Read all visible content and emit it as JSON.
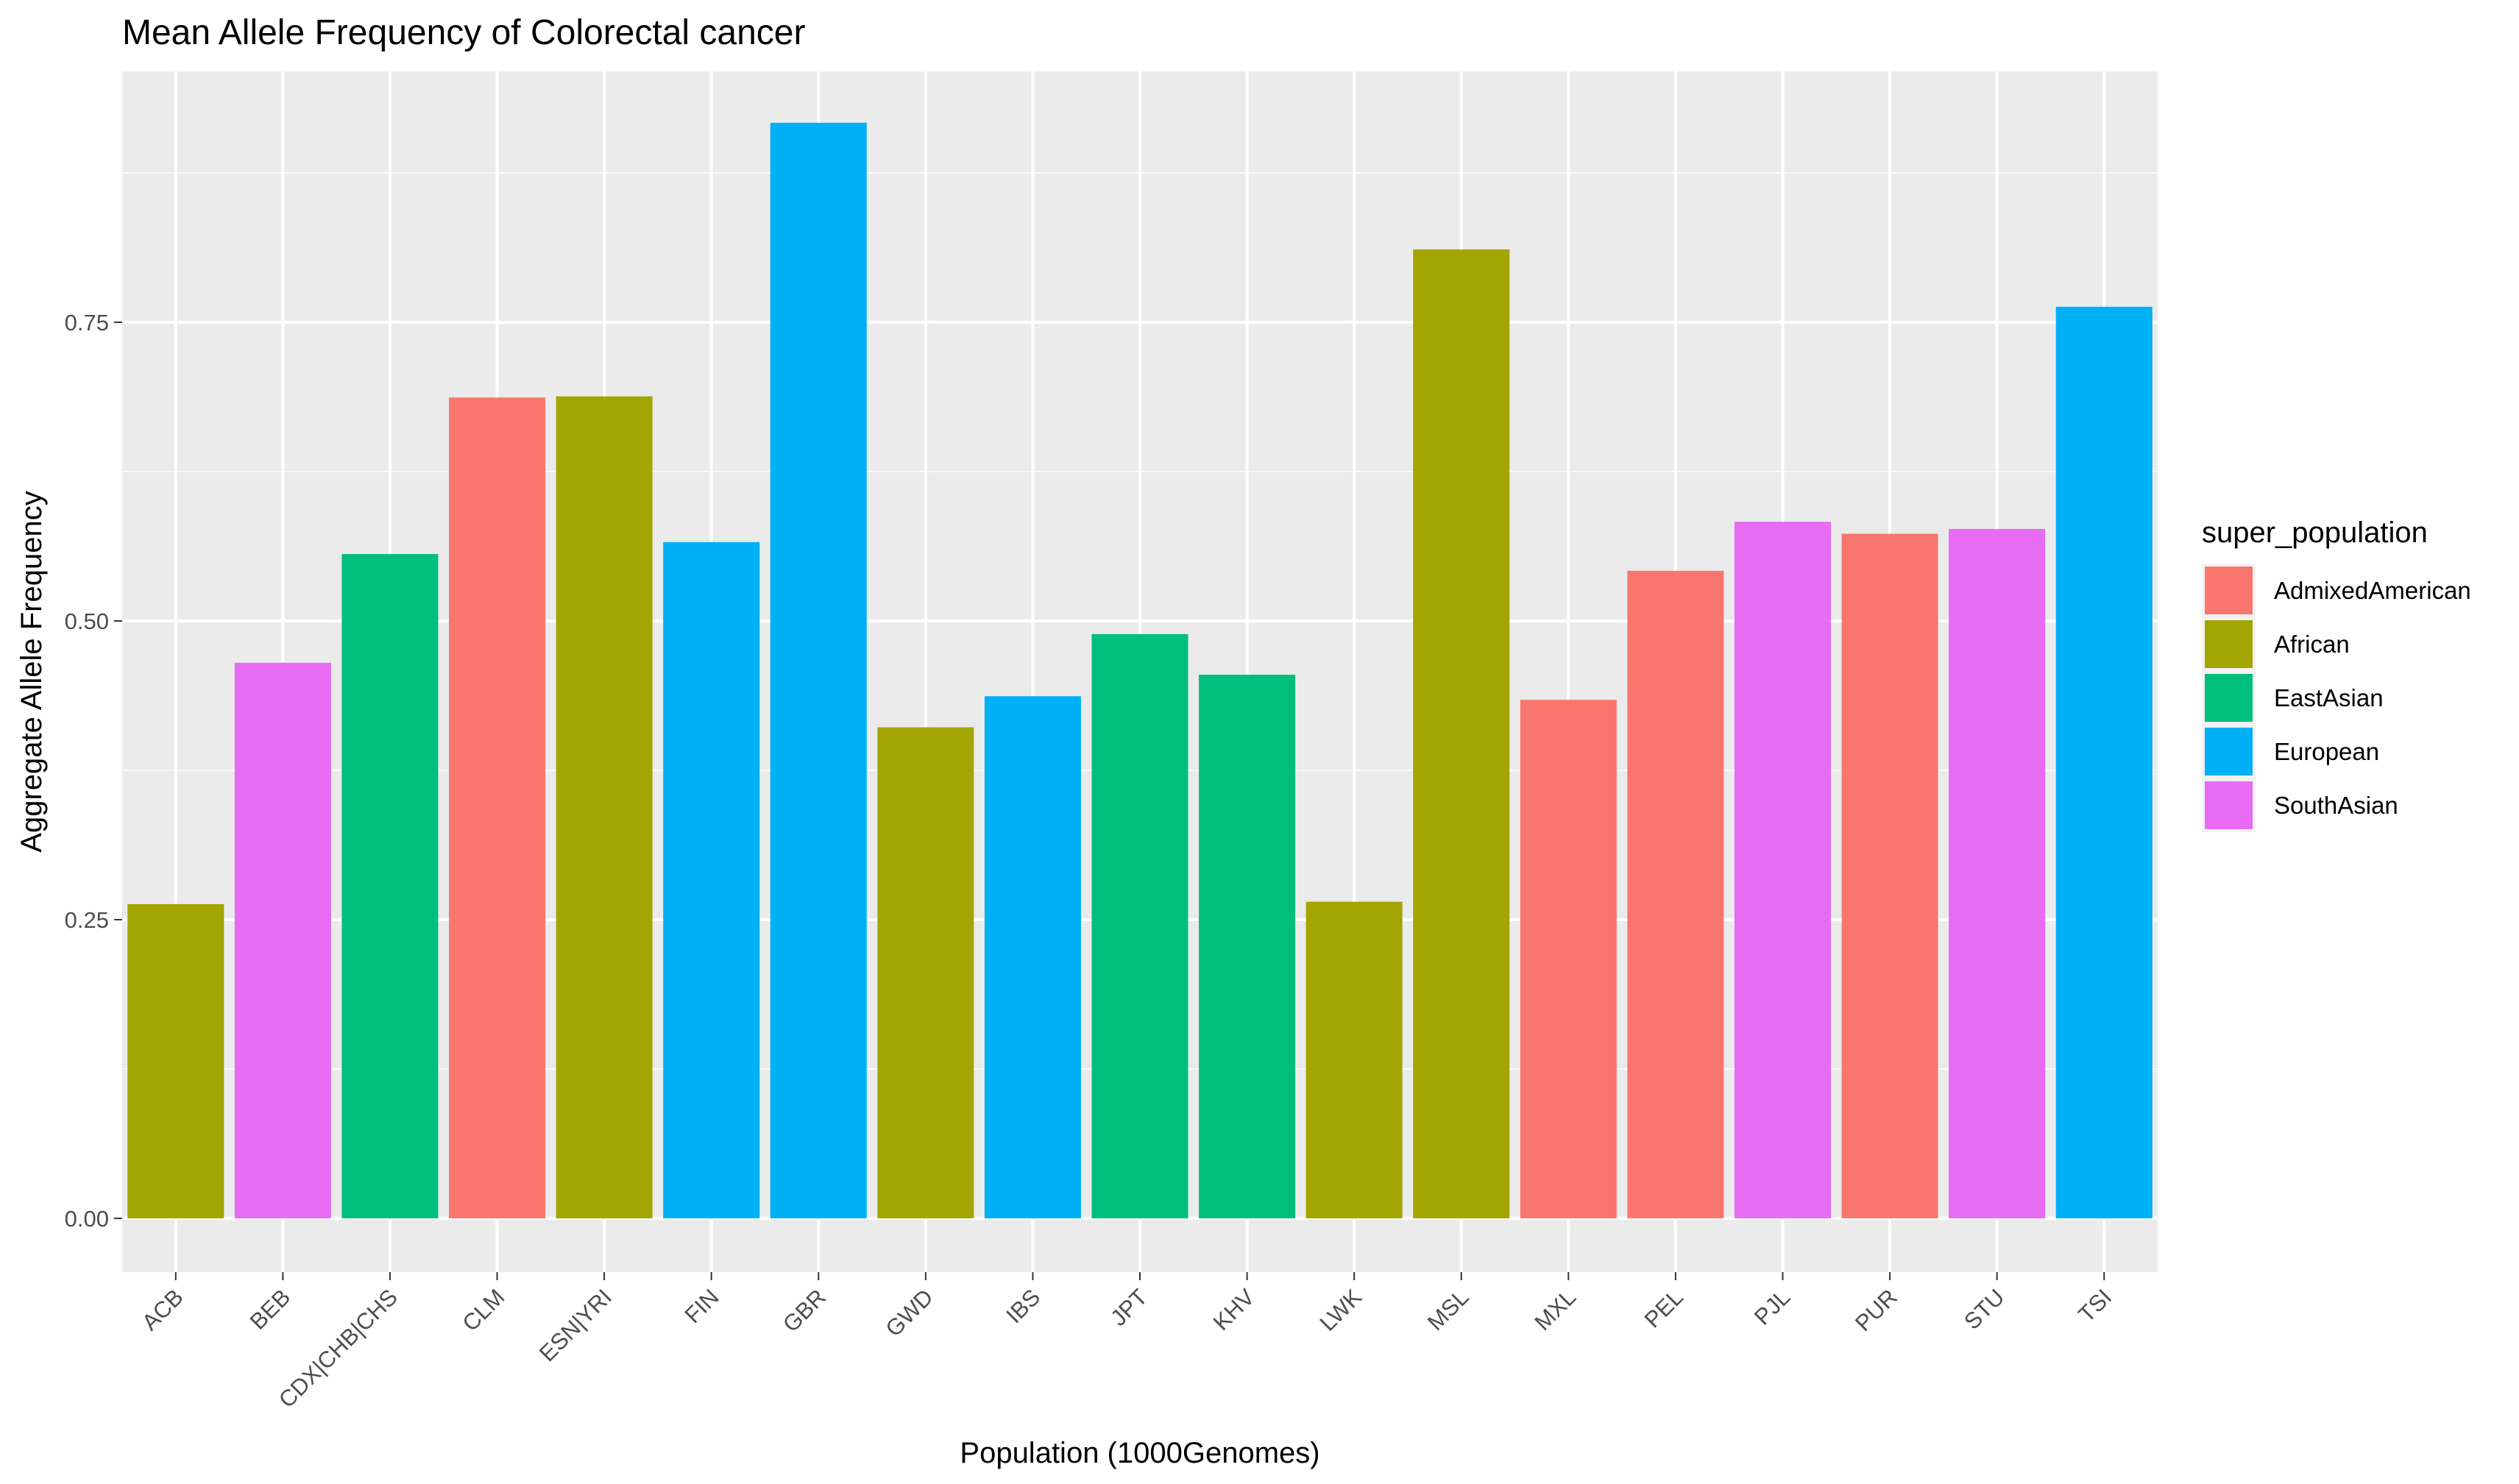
{
  "chart_data": {
    "type": "bar",
    "title": "Mean Allele Frequency of Colorectal cancer",
    "xlabel": "Population (1000Genomes)",
    "ylabel": "Aggregate Allele Frequency",
    "ylim": [
      -0.045,
      0.96
    ],
    "y_ticks": [
      "0.00",
      "0.25",
      "0.50",
      "0.75"
    ],
    "y_tick_values": [
      0,
      0.25,
      0.5,
      0.75
    ],
    "grid": true,
    "legend_position": "right",
    "legend_title": "super_population",
    "groups": [
      {
        "name": "AdmixedAmerican",
        "color": "#F8766D"
      },
      {
        "name": "African",
        "color": "#A3A500"
      },
      {
        "name": "EastAsian",
        "color": "#00BF7D"
      },
      {
        "name": "European",
        "color": "#00B0F6"
      },
      {
        "name": "SouthAsian",
        "color": "#E76BF3"
      }
    ],
    "categories": [
      "ACB",
      "BEB",
      "CDX|CHB|CHS",
      "CLM",
      "ESN|YRI",
      "FIN",
      "GBR",
      "GWD",
      "IBS",
      "JPT",
      "KHV",
      "LWK",
      "MSL",
      "MXL",
      "PEL",
      "PJL",
      "PUR",
      "STU",
      "TSI"
    ],
    "values": [
      0.263,
      0.465,
      0.556,
      0.687,
      0.688,
      0.566,
      0.917,
      0.411,
      0.437,
      0.489,
      0.455,
      0.265,
      0.811,
      0.434,
      0.542,
      0.583,
      0.573,
      0.577,
      0.763
    ],
    "group_of_category": [
      "African",
      "SouthAsian",
      "EastAsian",
      "AdmixedAmerican",
      "African",
      "European",
      "European",
      "African",
      "European",
      "EastAsian",
      "EastAsian",
      "African",
      "African",
      "AdmixedAmerican",
      "AdmixedAmerican",
      "SouthAsian",
      "AdmixedAmerican",
      "SouthAsian",
      "European"
    ]
  }
}
